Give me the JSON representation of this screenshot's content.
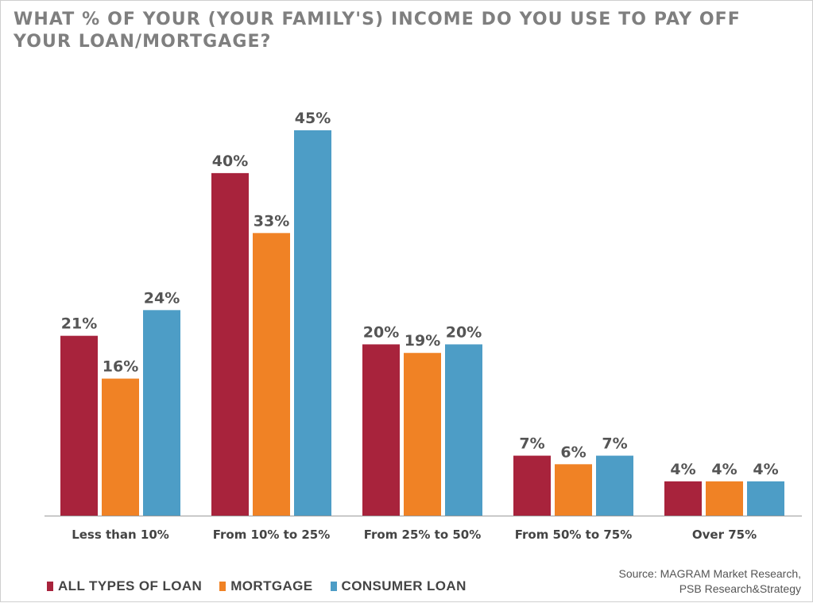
{
  "chart_data": {
    "type": "bar",
    "title": "WHAT % OF YOUR (YOUR FAMILY'S) INCOME DO YOU USE TO PAY OFF YOUR LOAN/MORTGAGE?",
    "categories": [
      "Less than 10%",
      "From 10% to 25%",
      "From 25% to 50%",
      "From 50% to 75%",
      "Over 75%"
    ],
    "series": [
      {
        "name": "ALL TYPES OF LOAN",
        "color": "#a8233c",
        "values": [
          21,
          40,
          20,
          7,
          4
        ]
      },
      {
        "name": "MORTGAGE",
        "color": "#f08225",
        "values": [
          16,
          33,
          19,
          6,
          4
        ]
      },
      {
        "name": "CONSUMER LOAN",
        "color": "#4d9dc6",
        "values": [
          24,
          45,
          20,
          7,
          4
        ]
      }
    ],
    "value_suffix": "%",
    "ylim": [
      0,
      45
    ],
    "grid": false,
    "legend_position": "bottom-left"
  },
  "source": {
    "line1": "Source: MAGRAM Market Research,",
    "line2": "PSB Research&Strategy"
  }
}
